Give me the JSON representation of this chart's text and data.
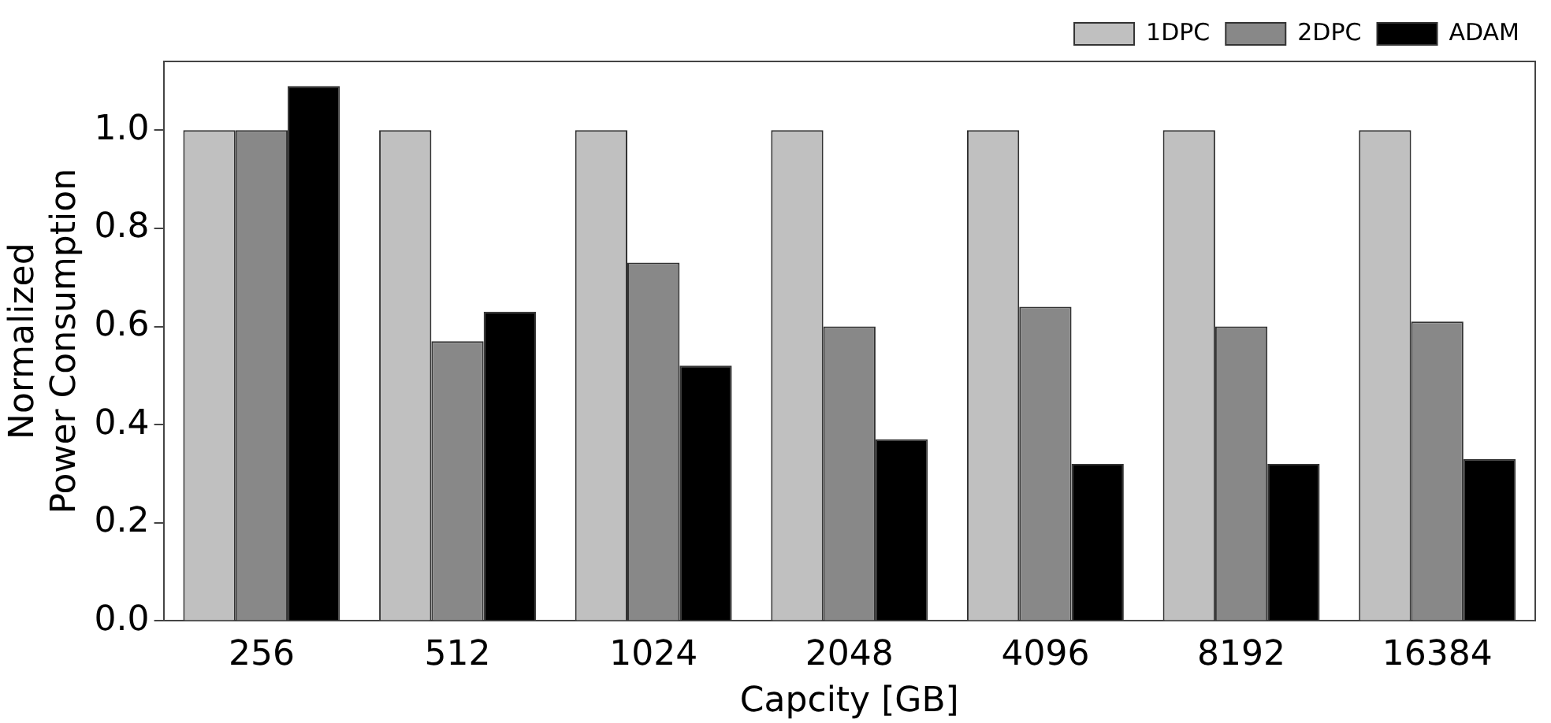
{
  "chart_data": {
    "type": "bar",
    "xlabel": "Capcity [GB]",
    "ylabel": [
      "Normalized",
      "Power Consumption"
    ],
    "categories": [
      "256",
      "512",
      "1024",
      "2048",
      "4096",
      "8192",
      "16384"
    ],
    "series": [
      {
        "name": "1DPC",
        "color": "#c0c0c0",
        "values": [
          1,
          1,
          1,
          1,
          1,
          1,
          1
        ]
      },
      {
        "name": "2DPC",
        "color": "#888888",
        "values": [
          1,
          0.57,
          0.73,
          0.6,
          0.64,
          0.6,
          0.61
        ]
      },
      {
        "name": "ADAM",
        "color": "#000000",
        "values": [
          1.09,
          0.63,
          0.52,
          0.37,
          0.32,
          0.32,
          0.33
        ]
      }
    ],
    "ylim": [
      0,
      1.14
    ],
    "yticks": [
      {
        "value": 0,
        "label": "0.0"
      },
      {
        "value": 0.2,
        "label": "0.2"
      },
      {
        "value": 0.4,
        "label": "0.4"
      },
      {
        "value": 0.6,
        "label": "0.6"
      },
      {
        "value": 0.8,
        "label": "0.8"
      },
      {
        "value": 1,
        "label": "1.0"
      }
    ],
    "grid": false,
    "legend": "top right"
  }
}
